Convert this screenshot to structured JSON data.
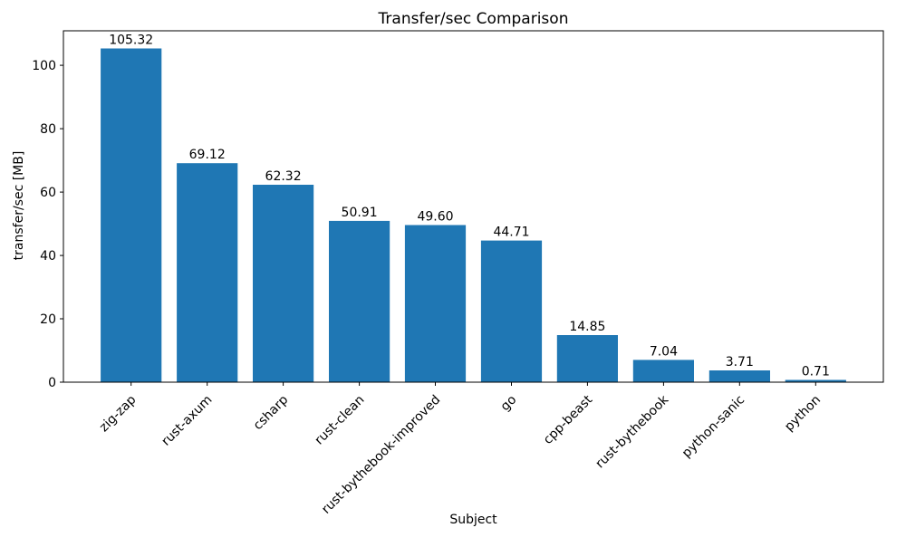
{
  "chart_data": {
    "type": "bar",
    "title": "Transfer/sec Comparison",
    "xlabel": "Subject",
    "ylabel": "transfer/sec [MB]",
    "categories": [
      "zig-zap",
      "rust-axum",
      "csharp",
      "rust-clean",
      "rust-bythebook-improved",
      "go",
      "cpp-beast",
      "rust-bythebook",
      "python-sanic",
      "python"
    ],
    "values": [
      105.32,
      69.12,
      62.32,
      50.91,
      49.6,
      44.71,
      14.85,
      7.04,
      3.71,
      0.71
    ],
    "value_labels": [
      "105.32",
      "69.12",
      "62.32",
      "50.91",
      "49.60",
      "44.71",
      "14.85",
      "7.04",
      "3.71",
      "0.71"
    ],
    "yticks": [
      0,
      20,
      40,
      60,
      80,
      100
    ],
    "ylim": [
      0,
      110.9
    ],
    "bar_color": "#1f77b4",
    "axis_color": "#000000",
    "grid": false,
    "legend": "none",
    "x_tick_rotation_deg": 45
  }
}
